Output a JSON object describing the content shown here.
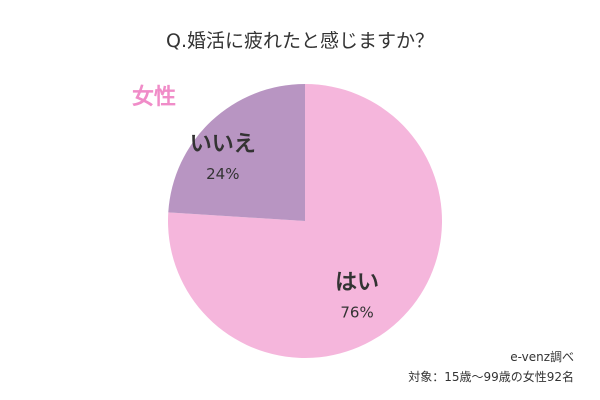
{
  "chart_data": {
    "type": "pie",
    "title": "Q.婚活に疲れたと感じますか？",
    "group_label": "女性",
    "slices": [
      {
        "label": "はい",
        "value": 76,
        "display": "76%",
        "color": "#f5b6dc"
      },
      {
        "label": "いいえ",
        "value": 24,
        "display": "24%",
        "color": "#b895c2"
      }
    ],
    "start": "12 o'clock, clockwise",
    "source": "e-venz調べ",
    "note": "対象：15歳～99歳の女性92名"
  }
}
